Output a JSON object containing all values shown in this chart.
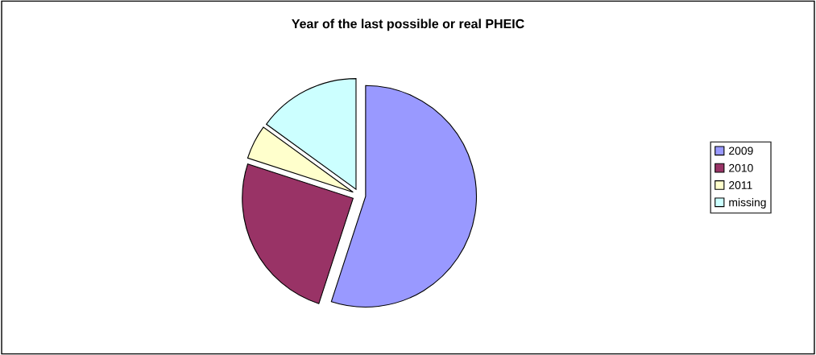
{
  "chart_data": {
    "type": "pie",
    "title": "Year of the last possible or real PHEIC",
    "categories": [
      "2009",
      "2010",
      "2011",
      "missing"
    ],
    "values": [
      55,
      25,
      5,
      15
    ],
    "colors": [
      "#9999ff",
      "#993366",
      "#ffffcc",
      "#ccffff"
    ],
    "legend": "right"
  }
}
